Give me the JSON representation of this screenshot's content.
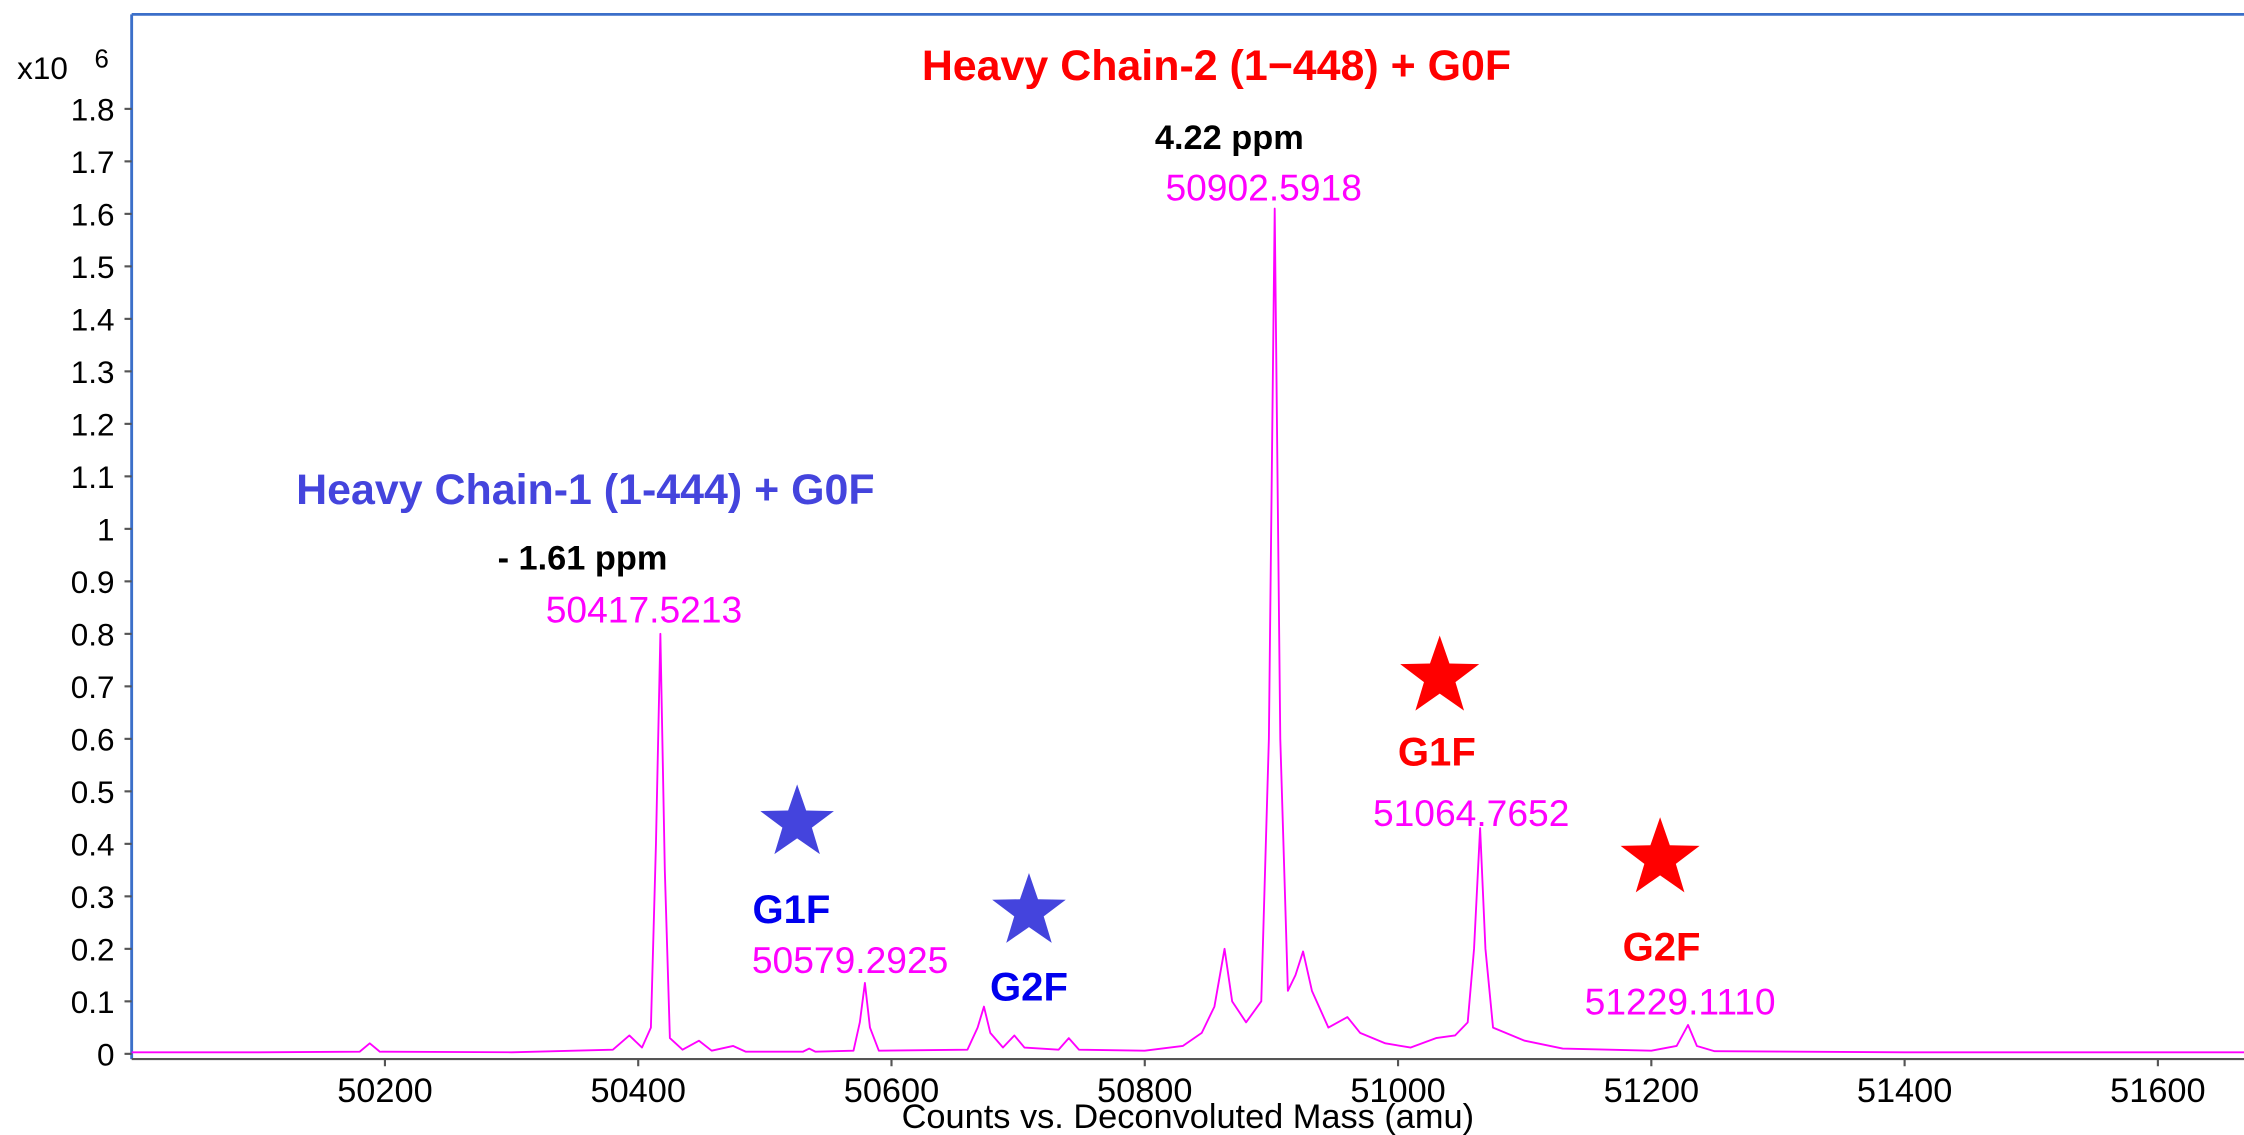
{
  "chart_data": {
    "type": "line",
    "x_label": "Counts vs. Deconvoluted Mass (amu)",
    "y_scale_label": "x10",
    "y_scale_exponent": "6",
    "xlim": [
      50000,
      51668
    ],
    "ylim": [
      -0.01,
      1.98
    ],
    "xticks": [
      50200,
      50400,
      50600,
      50800,
      51000,
      51200,
      51400,
      51600
    ],
    "yticks": [
      0,
      0.1,
      0.2,
      0.3,
      0.4,
      0.5,
      0.6,
      0.7,
      0.8,
      0.9,
      1,
      1.1,
      1.2,
      1.3,
      1.4,
      1.5,
      1.6,
      1.7,
      1.8
    ],
    "series": [
      {
        "color": "#ff00ff",
        "x": [
          50000,
          50100,
          50180,
          50188,
          50196,
          50300,
          50380,
          50393,
          50403,
          50410,
          50414,
          50417.5,
          50421,
          50425,
          50435,
          50448,
          50458,
          50475,
          50485,
          50530,
          50535,
          50540,
          50570,
          50575,
          50579,
          50583,
          50590,
          50660,
          50668,
          50673,
          50678,
          50688,
          50697,
          50705,
          50732,
          50740,
          50748,
          50800,
          50830,
          50845,
          50855,
          50863,
          50869,
          50880,
          50892,
          50898,
          50902.6,
          50907,
          50913,
          50919,
          50925,
          50932,
          50945,
          50960,
          50970,
          50990,
          51010,
          51030,
          51045,
          51055,
          51060,
          51064.8,
          51069,
          51075,
          51085,
          51100,
          51130,
          51200,
          51220,
          51229,
          51236,
          51250,
          51400,
          51668
        ],
        "values": [
          0.003,
          0.003,
          0.004,
          0.02,
          0.004,
          0.003,
          0.008,
          0.035,
          0.012,
          0.05,
          0.4,
          0.8,
          0.35,
          0.03,
          0.008,
          0.025,
          0.006,
          0.015,
          0.004,
          0.004,
          0.01,
          0.004,
          0.006,
          0.06,
          0.135,
          0.05,
          0.006,
          0.008,
          0.05,
          0.09,
          0.04,
          0.012,
          0.035,
          0.012,
          0.008,
          0.03,
          0.008,
          0.006,
          0.015,
          0.04,
          0.09,
          0.2,
          0.1,
          0.06,
          0.1,
          0.6,
          1.61,
          0.6,
          0.12,
          0.15,
          0.195,
          0.12,
          0.05,
          0.07,
          0.04,
          0.02,
          0.012,
          0.03,
          0.035,
          0.06,
          0.2,
          0.43,
          0.2,
          0.05,
          0.04,
          0.025,
          0.01,
          0.006,
          0.015,
          0.055,
          0.015,
          0.005,
          0.003,
          0.003
        ]
      }
    ],
    "annotations": [
      "Heavy Chain-2 (1−448) + G0F",
      "4.22 ppm",
      "50902.5918",
      "Heavy Chain-1 (1-444) + G0F",
      "- 1.61 ppm",
      "50417.5213",
      "G1F",
      "50579.2925",
      "G2F",
      "G1F",
      "51064.7652",
      "G2F",
      "51229.1110"
    ]
  }
}
